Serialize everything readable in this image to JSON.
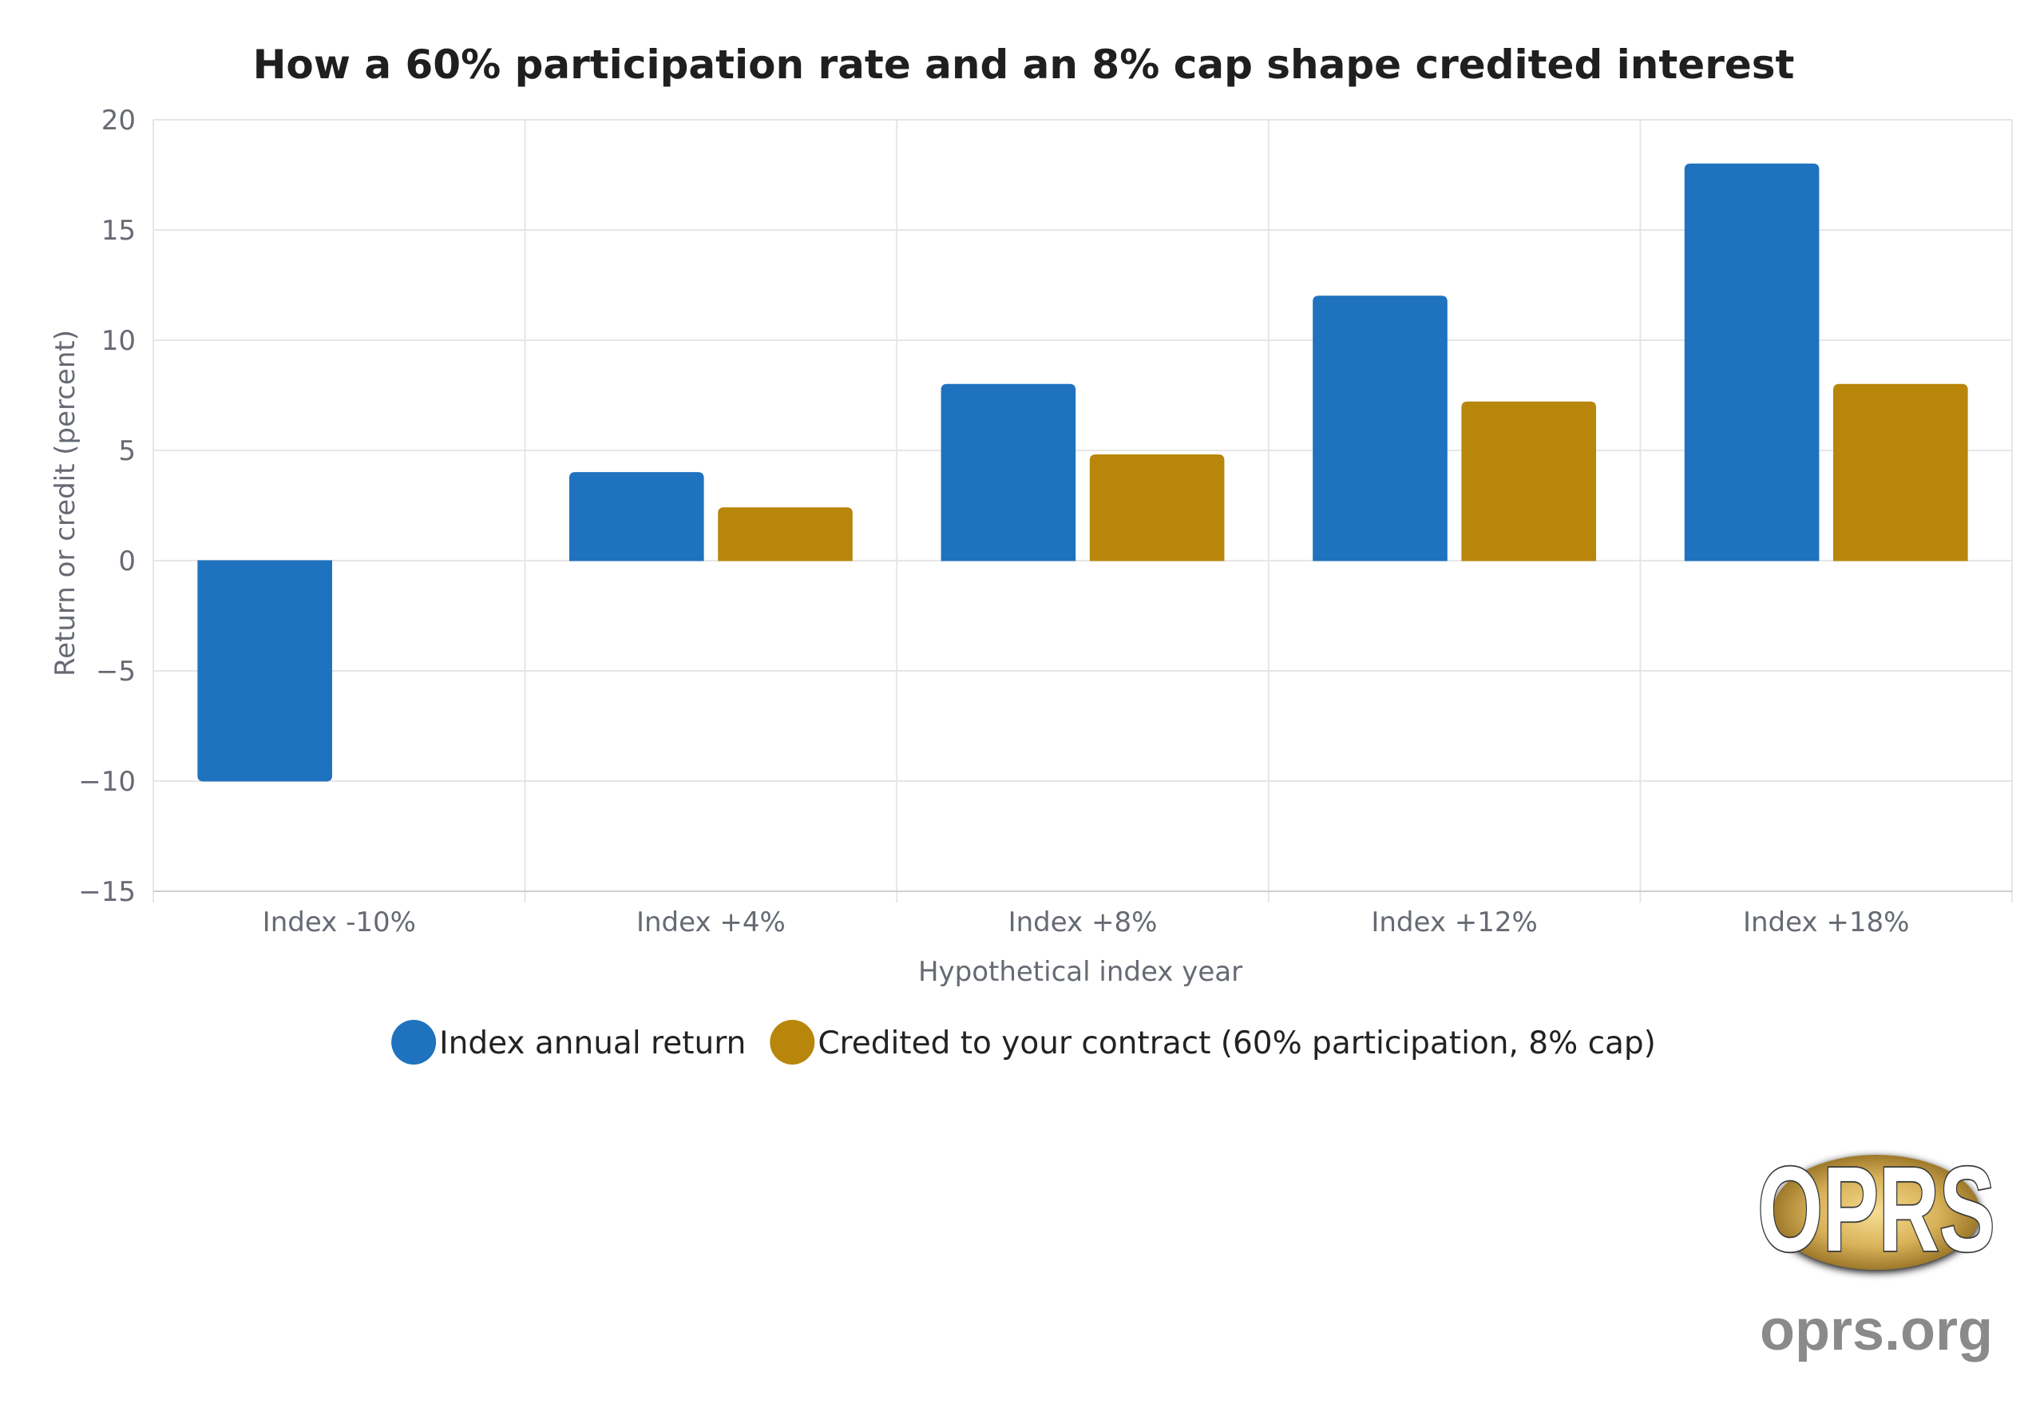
{
  "chart_data": {
    "type": "bar",
    "title": "How a 60% participation rate and an 8% cap shape credited interest",
    "xlabel": "Hypothetical index year",
    "ylabel": "Return or credit (percent)",
    "categories": [
      "Index -10%",
      "Index +4%",
      "Index +8%",
      "Index +12%",
      "Index +18%"
    ],
    "series": [
      {
        "name": "Index annual return",
        "color": "#1f72be",
        "values": [
          -10,
          4,
          8,
          12,
          18
        ]
      },
      {
        "name": "Credited to your contract (60% participation, 8% cap)",
        "color": "#b8860b",
        "values": [
          0,
          2.4,
          4.8,
          7.2,
          8
        ]
      }
    ],
    "ylim": [
      -15,
      20
    ],
    "yticks": [
      20,
      15,
      10,
      5,
      0,
      -5,
      -10,
      -15
    ],
    "grid": true,
    "legend_position": "bottom-center"
  },
  "logo": {
    "mark": "OPRS",
    "site": "oprs.org"
  }
}
